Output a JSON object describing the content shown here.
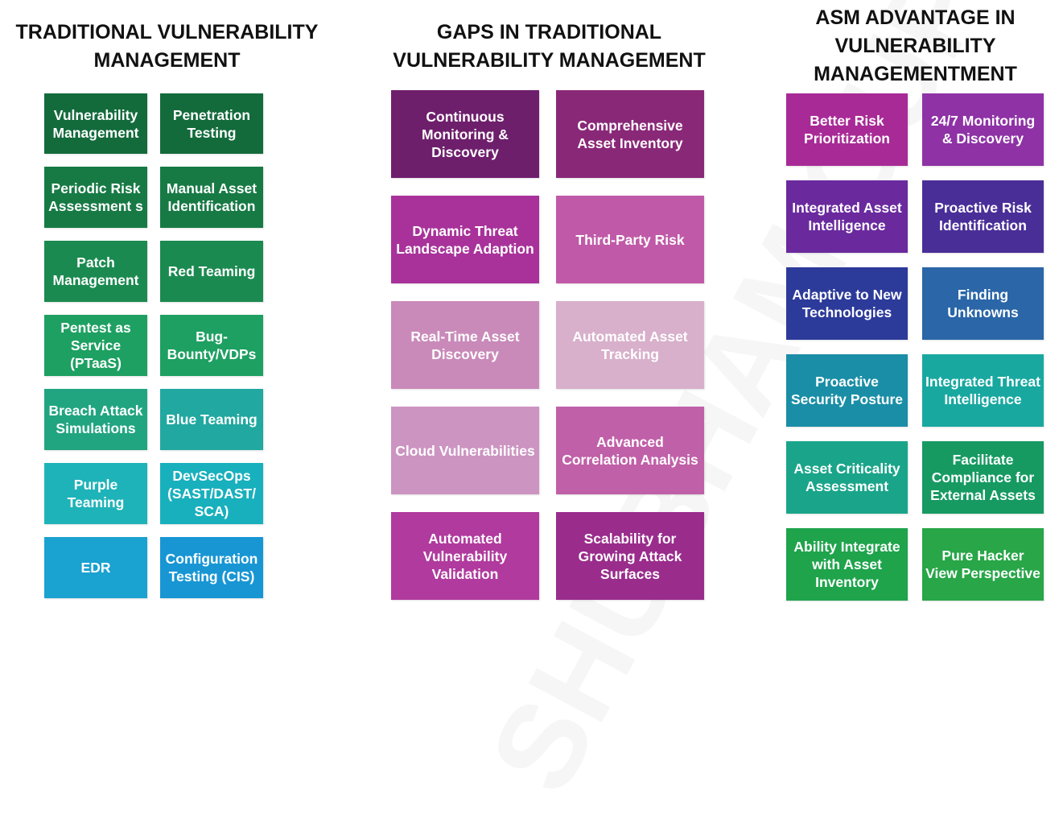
{
  "watermark": "SHUBHAM GUPTA",
  "columns": [
    {
      "title": "TRADITIONAL VULNERABILITY MANAGEMENT",
      "items": [
        {
          "label": "Vulnerability Management",
          "color": "#136b3c"
        },
        {
          "label": "Penetration Testing",
          "color": "#136b3c"
        },
        {
          "label": "Periodic Risk Assessment s",
          "color": "#177a45"
        },
        {
          "label": "Manual Asset Identification",
          "color": "#177a45"
        },
        {
          "label": "Patch Management",
          "color": "#1b8a50"
        },
        {
          "label": "Red Teaming",
          "color": "#1b8a50"
        },
        {
          "label": "Pentest as Service (PTaaS)",
          "color": "#1ea062"
        },
        {
          "label": "Bug-Bounty/VDPs",
          "color": "#1ea062"
        },
        {
          "label": "Breach Attack Simulations",
          "color": "#21a580"
        },
        {
          "label": "Blue Teaming",
          "color": "#21a8a0"
        },
        {
          "label": "Purple Teaming",
          "color": "#1eb3b8"
        },
        {
          "label": "DevSecOps (SAST/DAST/ SCA)",
          "color": "#18b0bd"
        },
        {
          "label": "EDR",
          "color": "#1aa2d0"
        },
        {
          "label": "Configuration Testing (CIS)",
          "color": "#1896d4"
        }
      ]
    },
    {
      "title": "GAPS IN TRADITIONAL VULNERABILITY MANAGEMENT",
      "items": [
        {
          "label": "Continuous Monitoring & Discovery",
          "color": "#6e1f6c"
        },
        {
          "label": "Comprehensive Asset Inventory",
          "color": "#8a2878"
        },
        {
          "label": "Dynamic Threat Landscape Adaption",
          "color": "#a8329a"
        },
        {
          "label": "Third-Party Risk",
          "color": "#c05aa8"
        },
        {
          "label": "Real-Time Asset Discovery",
          "color": "#c98ab9"
        },
        {
          "label": "Automated Asset Tracking",
          "color": "#d8b0cb"
        },
        {
          "label": "Cloud Vulnerabilities",
          "color": "#cc94c1"
        },
        {
          "label": "Advanced Correlation Analysis",
          "color": "#c060a8"
        },
        {
          "label": "Automated Vulnerability Validation",
          "color": "#b03a9e"
        },
        {
          "label": "Scalability for Growing Attack Surfaces",
          "color": "#9a2c8c"
        }
      ]
    },
    {
      "title": "ASM ADVANTAGE IN VULNERABILITY MANAGEMENTMENT",
      "items": [
        {
          "label": "Better Risk Prioritization",
          "color": "#a82a96"
        },
        {
          "label": "24/7 Monitoring & Discovery",
          "color": "#8e32a6"
        },
        {
          "label": "Integrated Asset Intelligence",
          "color": "#6a2a9e"
        },
        {
          "label": "Proactive Risk Identification",
          "color": "#4a2e98"
        },
        {
          "label": "Adaptive to New Technologies",
          "color": "#2c3a9a"
        },
        {
          "label": "Finding Unknowns",
          "color": "#2a66a8"
        },
        {
          "label": "Proactive Security Posture",
          "color": "#1a8ea6"
        },
        {
          "label": "Integrated Threat Intelligence",
          "color": "#18a8a0"
        },
        {
          "label": "Asset Criticality Assessment",
          "color": "#1aa58a"
        },
        {
          "label": "Facilitate Compliance for External Assets",
          "color": "#169a62"
        },
        {
          "label": "Ability Integrate with Asset Inventory",
          "color": "#1fa44c"
        },
        {
          "label": "Pure Hacker View Perspective",
          "color": "#28a648"
        }
      ]
    }
  ]
}
